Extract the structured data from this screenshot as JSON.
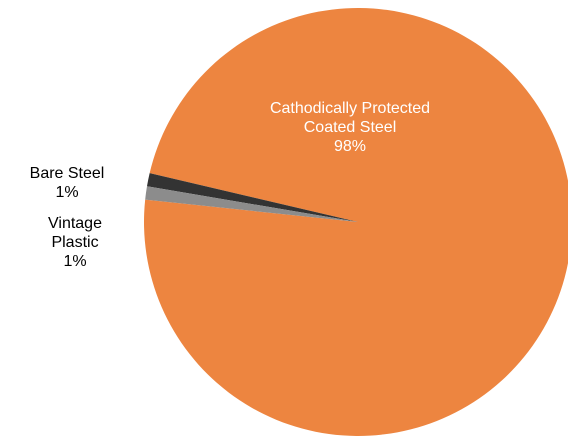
{
  "chart_data": {
    "type": "pie",
    "title": "",
    "start_angle_deg": 186,
    "slices": [
      {
        "label_lines": [
          "Cathodically Protected",
          "Coated Steel"
        ],
        "percent_label": "98%",
        "value": 98,
        "color": "#ED8540",
        "label_position": "inside"
      },
      {
        "label_lines": [
          "Bare Steel"
        ],
        "percent_label": "1%",
        "value": 1,
        "color": "#333333",
        "label_position": "outside-left"
      },
      {
        "label_lines": [
          "Vintage",
          "Plastic"
        ],
        "percent_label": "1%",
        "value": 1,
        "color": "#8C8C8C",
        "label_position": "outside-left"
      }
    ]
  }
}
